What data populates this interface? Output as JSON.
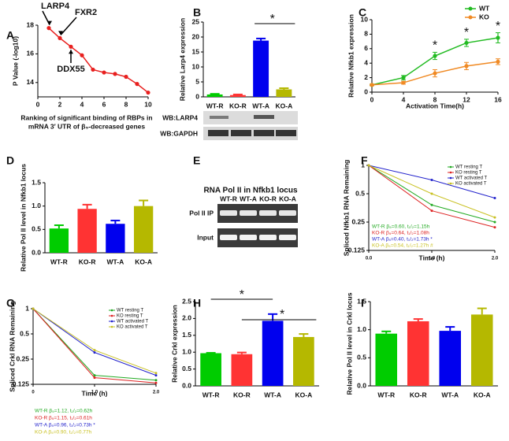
{
  "chart_data": [
    {
      "panel": "A",
      "type": "line",
      "ylabel": "P Value (-log10)",
      "xlabel": [
        "Ranking of significant binding of RBPs in",
        "mRNA 3′ UTR of β₅-decreased genes"
      ],
      "x": [
        1,
        2,
        3,
        4,
        5,
        6,
        7,
        8,
        9,
        10
      ],
      "values": [
        17.8,
        17.1,
        16.5,
        15.9,
        14.9,
        14.7,
        14.6,
        14.4,
        13.9,
        13.3
      ],
      "color": "#e8201f",
      "xlim": [
        0,
        10
      ],
      "xticks": [
        0,
        2,
        4,
        6,
        8,
        10
      ],
      "ylim": [
        13,
        18
      ],
      "yticks": [
        14,
        16,
        18
      ],
      "annotations": [
        "LARP4",
        "FXR2",
        "DDX55"
      ]
    },
    {
      "panel": "B",
      "type": "bar",
      "ylabel": "Relative Larp4 expression",
      "categories": [
        "WT-R",
        "KO-R",
        "WT-A",
        "KO-A"
      ],
      "values": [
        0.8,
        0.6,
        18.8,
        2.5
      ],
      "errors": [
        0.2,
        0.2,
        0.7,
        0.4
      ],
      "colors": [
        "#00cc00",
        "#ff3333",
        "#0000ee",
        "#b5b800"
      ],
      "ylim": [
        0,
        25
      ],
      "yticks": [
        0,
        5,
        10,
        15,
        20,
        25
      ],
      "annotations": [
        "*"
      ]
    },
    {
      "panel": "C",
      "type": "line",
      "ylabel": "Relative Nfkb1 expression",
      "xlabel": "Activation Time(h)",
      "x": [
        0,
        4,
        8,
        12,
        16
      ],
      "series": [
        {
          "name": "WT",
          "color": "#22bb22",
          "values": [
            1,
            2,
            5,
            6.8,
            7.5
          ],
          "errors": [
            0.1,
            0.3,
            0.5,
            0.5,
            0.7
          ]
        },
        {
          "name": "KO",
          "color": "#f08a24",
          "values": [
            1,
            1.3,
            2.6,
            3.6,
            4.2
          ],
          "errors": [
            0.1,
            0.2,
            0.5,
            0.5,
            0.4
          ]
        }
      ],
      "xlim": [
        0,
        16
      ],
      "xticks": [
        0,
        4,
        8,
        12,
        16
      ],
      "ylim": [
        0,
        10
      ],
      "yticks": [
        0,
        2,
        4,
        6,
        8,
        10
      ],
      "annotations": [
        "*",
        "*",
        "*"
      ]
    },
    {
      "panel": "D",
      "type": "bar",
      "ylabel": "Relative Pol II level in Nfkb1 locus",
      "categories": [
        "WT-R",
        "KO-R",
        "WT-A",
        "KO-A"
      ],
      "values": [
        0.52,
        0.94,
        0.62,
        1.0
      ],
      "errors": [
        0.07,
        0.09,
        0.07,
        0.12
      ],
      "colors": [
        "#00cc00",
        "#ff3333",
        "#0000ee",
        "#b5b800"
      ],
      "ylim": [
        0,
        1.5
      ],
      "yticks": [
        {
          "value": 0,
          "label": "0.0"
        },
        {
          "value": 0.5,
          "label": "0.5"
        },
        {
          "value": 1,
          "label": "1.0"
        },
        {
          "value": 1.5,
          "label": "1.5"
        }
      ]
    },
    {
      "panel": "F",
      "type": "line",
      "log_y": true,
      "ylabel": "Spliced Nfkb1 RNA Remaining",
      "xlabel": "Time (h)",
      "x": [
        0,
        1,
        2
      ],
      "series": [
        {
          "name": "WT resting T",
          "color": "#22aa22",
          "values": [
            1,
            0.38,
            0.25
          ]
        },
        {
          "name": "KO resting T",
          "color": "#dd2222",
          "values": [
            1,
            0.33,
            0.22
          ]
        },
        {
          "name": "WT activated T",
          "color": "#2222cc",
          "values": [
            1,
            0.7,
            0.45
          ]
        },
        {
          "name": "KO activated T",
          "color": "#c8c020",
          "values": [
            1,
            0.5,
            0.28
          ]
        }
      ],
      "xlim": [
        0,
        2
      ],
      "xticks": [
        {
          "value": 0,
          "label": "0.0"
        },
        {
          "value": 1,
          "label": "1.0"
        },
        {
          "value": 2,
          "label": "2.0"
        }
      ],
      "ylim": [
        0.125,
        1
      ],
      "yticks": [
        0.125,
        0.25,
        0.5,
        1
      ],
      "stats": [
        "WT-R β₅=0.60, t₁/₂=1.15h",
        "KO-R β₅=0.64, t₁/₂=1.08h",
        "WT-A β₅=0.40, t₁/₂=1.73h  *",
        "KO-A β₅=0.54, t₁/₂=1.27h  #"
      ]
    },
    {
      "panel": "G",
      "type": "line",
      "log_y": true,
      "ylabel": "Spliced Crkl RNA Remaining",
      "xlabel": "Time (h)",
      "x": [
        0,
        1,
        2
      ],
      "series": [
        {
          "name": "WT resting T",
          "color": "#22aa22",
          "values": [
            1,
            0.16,
            0.14
          ]
        },
        {
          "name": "KO resting T",
          "color": "#dd2222",
          "values": [
            1,
            0.15,
            0.13
          ]
        },
        {
          "name": "WT activated T",
          "color": "#2222cc",
          "values": [
            1,
            0.3,
            0.16
          ]
        },
        {
          "name": "KO activated T",
          "color": "#c8c020",
          "values": [
            1,
            0.32,
            0.17
          ]
        }
      ],
      "xlim": [
        0,
        2
      ],
      "xticks": [
        0,
        {
          "value": 1,
          "label": "1.0"
        },
        {
          "value": 2,
          "label": "2.0"
        }
      ],
      "ylim": [
        0.125,
        1
      ],
      "yticks": [
        0.125,
        0.25,
        0.5,
        1
      ],
      "stats": [
        "WT-R β₅=1.12, t₁/₂=0.62h",
        "KO-R β₅=1.15, t₁/₂=0.61h",
        "WT-A β₅=0.96, t₁/₂=0.73h  *",
        "KO-A β₅=0.90, t₁/₂=0.77h"
      ]
    },
    {
      "panel": "H",
      "type": "bar",
      "ylabel": "Relative Crkl expression",
      "categories": [
        "WT-R",
        "KO-R",
        "WT-A",
        "KO-A"
      ],
      "values": [
        0.97,
        0.94,
        1.93,
        1.45
      ],
      "errors": [
        0.01,
        0.05,
        0.2,
        0.09
      ],
      "colors": [
        "#00cc00",
        "#ff3333",
        "#0000ee",
        "#b5b800"
      ],
      "ylim": [
        0,
        2.5
      ],
      "yticks": [
        {
          "value": 0,
          "label": "0.0"
        },
        {
          "value": 0.5,
          "label": "0.5"
        },
        {
          "value": 1,
          "label": "1.0"
        },
        {
          "value": 1.5,
          "label": "1.5"
        },
        {
          "value": 2,
          "label": "2.0"
        },
        {
          "value": 2.5,
          "label": "2.5"
        }
      ],
      "annotations": [
        "*",
        "*"
      ]
    },
    {
      "panel": "I",
      "type": "bar",
      "ylabel": "Relative Pol II level in Crkl locus",
      "categories": [
        "WT-R",
        "KO-R",
        "WT-A",
        "KO-A"
      ],
      "values": [
        0.93,
        1.15,
        0.98,
        1.27
      ],
      "errors": [
        0.04,
        0.04,
        0.07,
        0.11
      ],
      "colors": [
        "#00cc00",
        "#ff3333",
        "#0000ee",
        "#b5b800"
      ],
      "ylim": [
        0,
        1.5
      ],
      "yticks": [
        {
          "value": 0,
          "label": "0.0"
        },
        {
          "value": 0.5,
          "label": "0.5"
        },
        {
          "value": 1,
          "label": "1.0"
        },
        {
          "value": 1.5,
          "label": "1.5"
        }
      ]
    }
  ],
  "blots": {
    "B": {
      "rows": [
        "WB:LARP4",
        "WB:GAPDH"
      ]
    },
    "E": {
      "panel": "E",
      "title": "RNA Pol II in Nfkb1 locus",
      "lanes": [
        "WT-R",
        "WT-A",
        "KO-R",
        "KO-A"
      ],
      "rows": [
        "Pol II IP",
        "Input"
      ]
    }
  }
}
